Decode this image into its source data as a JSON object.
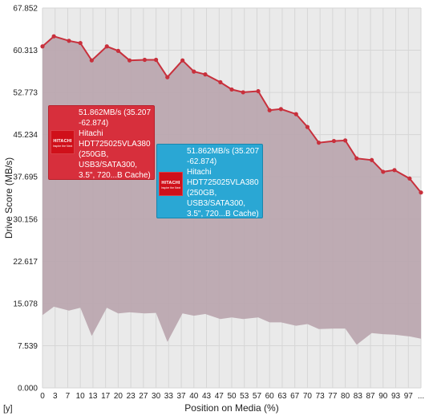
{
  "chart_data": {
    "type": "area",
    "xlabel": "Position on Media (%)",
    "ylabel": "Drive Score (MB/s)",
    "x_axis_corner_label": "[y]",
    "ylim": [
      0,
      67.852
    ],
    "y_ticks": [
      "0.000",
      "7.539",
      "15.078",
      "22.617",
      "30.156",
      "37.695",
      "45.234",
      "52.773",
      "60.313",
      "67.852"
    ],
    "x_ticks": [
      "0",
      "3",
      "7",
      "10",
      "13",
      "17",
      "20",
      "23",
      "27",
      "30",
      "33",
      "37",
      "40",
      "43",
      "47",
      "50",
      "53",
      "57",
      "60",
      "63",
      "67",
      "70",
      "73",
      "77",
      "80",
      "83",
      "87",
      "90",
      "93",
      "97",
      "..."
    ],
    "grid": true,
    "x": [
      0,
      3,
      7,
      10,
      13,
      17,
      20,
      23,
      27,
      30,
      33,
      37,
      40,
      43,
      47,
      50,
      53,
      57,
      60,
      63,
      67,
      70,
      73,
      77,
      80,
      83,
      87,
      90,
      93,
      97,
      100
    ],
    "series": [
      {
        "values": [
          61.0,
          62.8,
          62.0,
          61.6,
          58.5,
          61.0,
          60.2,
          58.5,
          58.6,
          58.6,
          55.5,
          58.5,
          56.5,
          56.0,
          54.6,
          53.3,
          52.8,
          53.0,
          49.6,
          49.8,
          48.9,
          46.6,
          43.8,
          44.1,
          44.2,
          41.0,
          40.7,
          38.6,
          38.9,
          37.4,
          34.9
        ]
      },
      {
        "values": [
          13.0,
          14.5,
          13.8,
          14.3,
          9.3,
          14.3,
          13.3,
          13.5,
          13.3,
          13.4,
          8.2,
          13.3,
          12.9,
          13.2,
          12.3,
          12.6,
          12.3,
          12.6,
          11.7,
          11.7,
          11.1,
          11.4,
          10.5,
          10.6,
          10.6,
          7.7,
          9.8,
          9.6,
          9.5,
          9.2,
          8.8
        ]
      }
    ],
    "colors": {
      "area_fill": "#b9a4ad",
      "line": "#c8303c",
      "marker": "#c8303c",
      "grid": "#d6d6d6",
      "plot_bg": "#eaeaea"
    }
  },
  "tooltips": [
    {
      "id": "red",
      "lines": [
        "51.862MB/s (35.207",
        "-62.874)",
        "Hitachi",
        "HDT725025VLA380",
        "(250GB,",
        "USB3/SATA300,",
        "3.5\", 720...B Cache)"
      ],
      "logo_text": "HITACHI",
      "logo_sub": "Inspire the Next",
      "color": "#d72f3c"
    },
    {
      "id": "blue",
      "lines": [
        "51.862MB/s (35.207",
        "-62.874)",
        "Hitachi",
        "HDT725025VLA380",
        "(250GB,",
        "USB3/SATA300,",
        "3.5\",  720...B Cache)"
      ],
      "logo_text": "HITACHI",
      "logo_sub": "Inspire the Next",
      "color": "#2aa7d4"
    }
  ]
}
